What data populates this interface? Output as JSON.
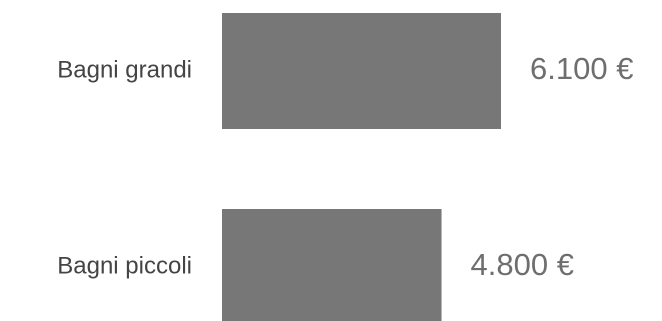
{
  "chart_data": {
    "type": "bar",
    "orientation": "horizontal",
    "categories": [
      "Bagni grandi",
      "Bagni piccoli"
    ],
    "values": [
      6100,
      4800
    ],
    "value_labels": [
      "6.100 €",
      "4.800 €"
    ],
    "title": "",
    "xlabel": "",
    "ylabel": "",
    "xlim": [
      0,
      6100
    ],
    "grid": false,
    "legend": "none",
    "bar_color": "#777777",
    "label_color": "#444444",
    "value_color": "#6e6e6e"
  }
}
